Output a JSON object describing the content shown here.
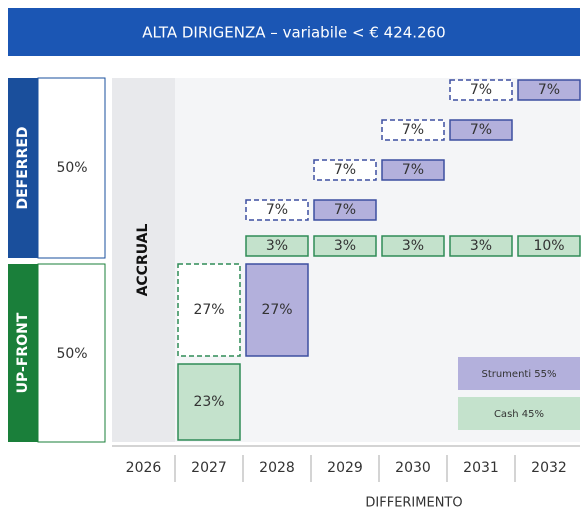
{
  "title": "ALTA DIRIGENZA – variabile < € 424.260",
  "deferred": {
    "label": "DEFERRED",
    "share": "50%",
    "pending": [
      "7%",
      "7%",
      "7%",
      "7%"
    ],
    "instruments": [
      "7%",
      "7%",
      "7%",
      "7%"
    ],
    "cash": [
      "3%",
      "3%",
      "3%",
      "3%",
      "10%"
    ]
  },
  "upfront": {
    "label": "UP-FRONT",
    "share": "50%",
    "pending": "27%",
    "instruments": "27%",
    "cash": "23%"
  },
  "accrual": "ACCRUAL",
  "years": [
    "2026",
    "2027",
    "2028",
    "2029",
    "2030",
    "2031",
    "2032"
  ],
  "axis_label": "DIFFERIMENTO",
  "legend": [
    "Strumenti 55%",
    "Cash 45%"
  ]
}
